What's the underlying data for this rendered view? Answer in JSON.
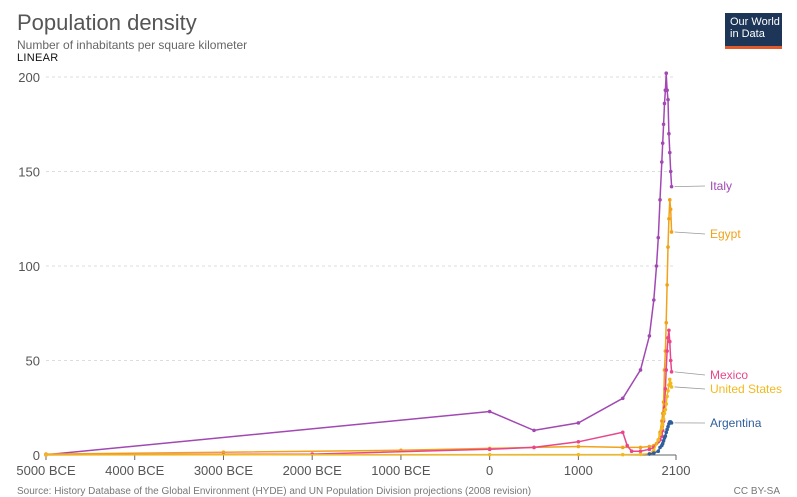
{
  "title": "Population density",
  "subtitle": "Number of inhabitants per square kilometer",
  "scale_label": "LINEAR",
  "logo": {
    "line1": "Our World",
    "line2": "in Data"
  },
  "source": "Source: History Database of the Global Environment (HYDE) and UN Population Division projections (2008 revision)",
  "license": "CC BY-SA",
  "colors": {
    "Italy": "#a148b3",
    "Egypt": "#f0a21a",
    "Mexico": "#e8468b",
    "United States": "#f2b91f",
    "Argentina": "#2e5e9c",
    "grid": "#dddddd",
    "axis": "#666666"
  },
  "chart_data": {
    "type": "line",
    "title": "Population density",
    "ylabel": "",
    "ylim": [
      0,
      200
    ],
    "xlim": [
      -5000,
      2100
    ],
    "yticks": [
      0,
      50,
      100,
      150,
      200
    ],
    "xticks": [
      {
        "v": -5000,
        "label": "5000 BCE"
      },
      {
        "v": -4000,
        "label": "4000 BCE"
      },
      {
        "v": -3000,
        "label": "3000 BCE"
      },
      {
        "v": -2000,
        "label": "2000 BCE"
      },
      {
        "v": -1000,
        "label": "1000 BCE"
      },
      {
        "v": 0,
        "label": "0"
      },
      {
        "v": 1000,
        "label": "1000"
      },
      {
        "v": 2100,
        "label": "2100"
      }
    ],
    "series": [
      {
        "name": "Italy",
        "x": [
          -5000,
          0,
          500,
          1000,
          1500,
          1700,
          1800,
          1850,
          1880,
          1900,
          1920,
          1940,
          1950,
          1960,
          1970,
          1980,
          1990,
          2000,
          2010,
          2020,
          2030,
          2040,
          2050
        ],
        "y": [
          0.1,
          23,
          13,
          17,
          30,
          45,
          63,
          82,
          100,
          115,
          135,
          155,
          165,
          175,
          186,
          193,
          202,
          193,
          188,
          170,
          160,
          150,
          142
        ]
      },
      {
        "name": "Egypt",
        "x": [
          -5000,
          -3000,
          -1000,
          0,
          500,
          1000,
          1500,
          1700,
          1800,
          1850,
          1880,
          1900,
          1920,
          1940,
          1950,
          1960,
          1970,
          1980,
          1990,
          2000,
          2010,
          2020,
          2030,
          2040,
          2050
        ],
        "y": [
          0.5,
          1.5,
          2.5,
          3.5,
          4,
          4.5,
          4,
          4,
          4.5,
          5,
          6,
          8,
          12,
          18,
          22,
          28,
          45,
          55,
          70,
          90,
          110,
          125,
          135,
          130,
          118
        ]
      },
      {
        "name": "Mexico",
        "x": [
          -5000,
          -2000,
          0,
          500,
          1000,
          1500,
          1550,
          1600,
          1700,
          1800,
          1850,
          1900,
          1920,
          1940,
          1950,
          1960,
          1970,
          1980,
          1990,
          2000,
          2010,
          2020,
          2030,
          2040,
          2050
        ],
        "y": [
          0.05,
          0.5,
          3,
          4,
          7,
          12,
          5,
          2,
          2,
          3,
          4,
          7,
          8,
          10,
          13,
          18,
          25,
          35,
          45,
          55,
          62,
          66,
          60,
          50,
          44
        ]
      },
      {
        "name": "United States",
        "x": [
          -5000,
          0,
          1000,
          1500,
          1700,
          1800,
          1850,
          1900,
          1920,
          1940,
          1950,
          1960,
          1970,
          1980,
          1990,
          2000,
          2010,
          2020,
          2030,
          2040,
          2050
        ],
        "y": [
          0.05,
          0.2,
          0.2,
          0.2,
          0.3,
          0.7,
          2.5,
          8,
          11,
          14,
          16,
          19,
          22,
          24,
          27,
          31,
          34,
          37,
          40,
          38,
          36
        ]
      },
      {
        "name": "Argentina",
        "x": [
          1800,
          1850,
          1900,
          1920,
          1940,
          1950,
          1960,
          1970,
          1980,
          1990,
          2000,
          2010,
          2020,
          2030,
          2040,
          2050
        ],
        "y": [
          0.5,
          1,
          2,
          4,
          5,
          6,
          7.5,
          9,
          10,
          12,
          13.5,
          15,
          16.5,
          17.5,
          17.5,
          17
        ]
      }
    ],
    "labels": [
      {
        "series": "Italy",
        "text": "Italy"
      },
      {
        "series": "Egypt",
        "text": "Egypt"
      },
      {
        "series": "Mexico",
        "text": "Mexico"
      },
      {
        "series": "United States",
        "text": "United States"
      },
      {
        "series": "Argentina",
        "text": "Argentina"
      }
    ]
  }
}
